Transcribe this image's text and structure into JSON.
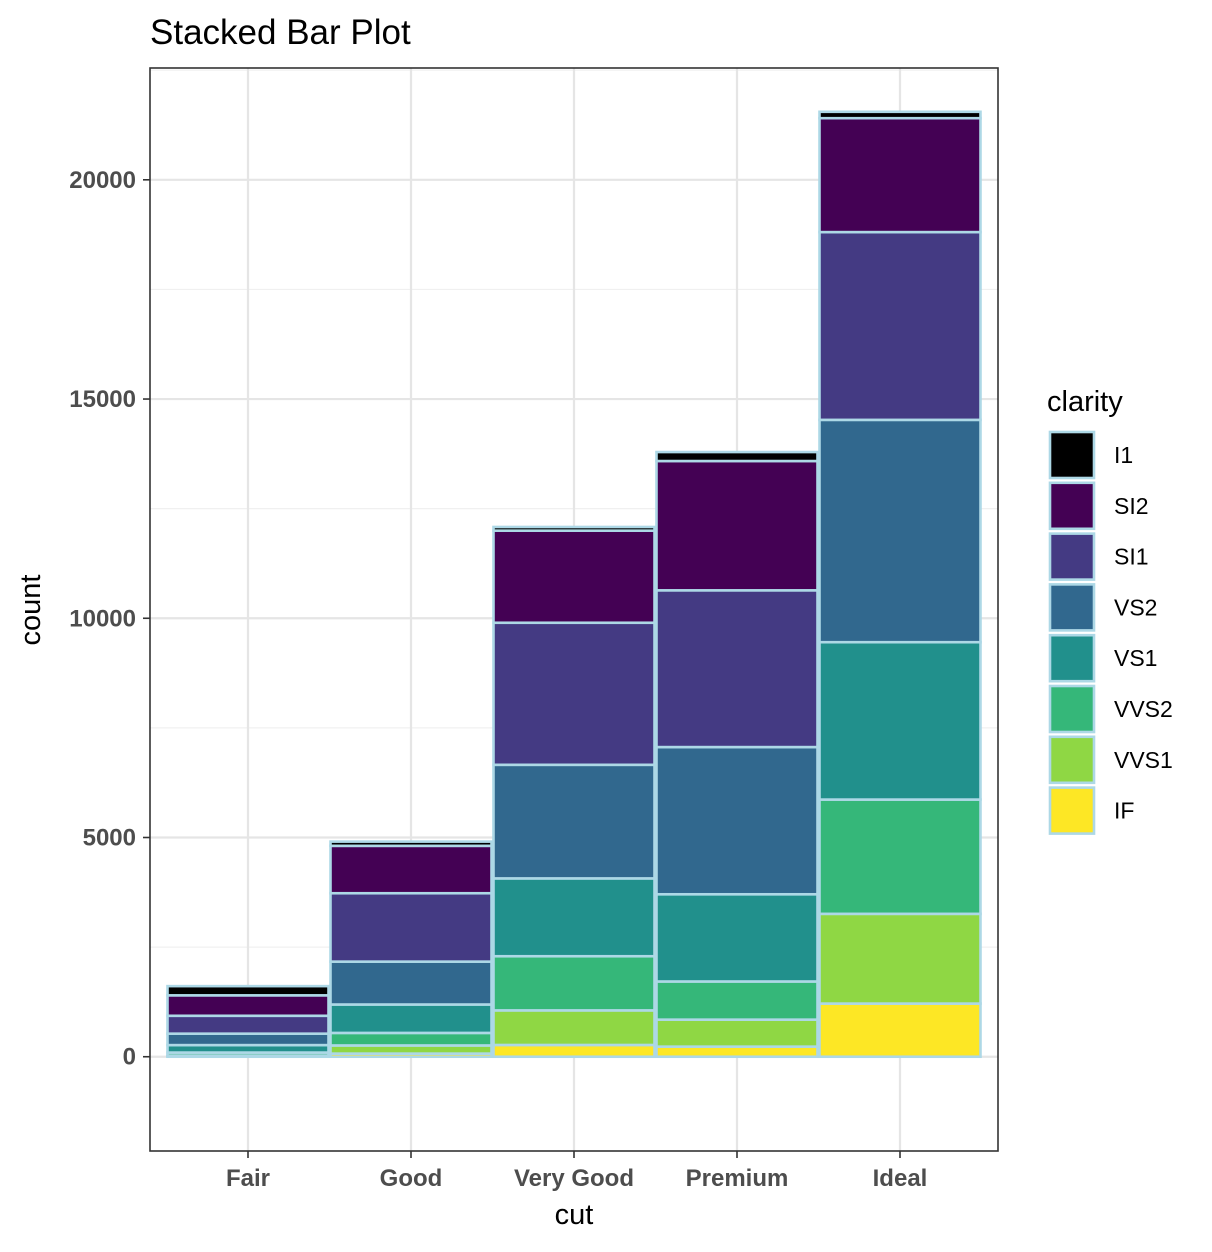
{
  "chart_data": {
    "type": "bar",
    "stacked": true,
    "title": "Stacked Bar Plot",
    "xlabel": "cut",
    "ylabel": "count",
    "categories": [
      "Fair",
      "Good",
      "Very Good",
      "Premium",
      "Ideal"
    ],
    "ylim": [
      -2150,
      22550
    ],
    "yticks": [
      0,
      5000,
      10000,
      15000,
      20000
    ],
    "grid": true,
    "legend": {
      "title": "clarity",
      "position": "right"
    },
    "bar_outline_color": "#ADD8E6",
    "series": [
      {
        "name": "IF",
        "color": "#FDE725",
        "values": [
          9,
          71,
          268,
          230,
          1212
        ]
      },
      {
        "name": "VVS1",
        "color": "#8FD744",
        "values": [
          17,
          186,
          789,
          616,
          2047
        ]
      },
      {
        "name": "VVS2",
        "color": "#35B779",
        "values": [
          69,
          286,
          1235,
          870,
          2606
        ]
      },
      {
        "name": "VS1",
        "color": "#21908C",
        "values": [
          170,
          648,
          1775,
          1989,
          3589
        ]
      },
      {
        "name": "VS2",
        "color": "#31688E",
        "values": [
          261,
          978,
          2591,
          3357,
          5071
        ]
      },
      {
        "name": "SI1",
        "color": "#443A83",
        "values": [
          408,
          1560,
          3240,
          3575,
          4282
        ]
      },
      {
        "name": "SI2",
        "color": "#440154",
        "values": [
          466,
          1081,
          2100,
          2949,
          2598
        ]
      },
      {
        "name": "I1",
        "color": "#000000",
        "values": [
          210,
          96,
          84,
          205,
          146
        ]
      }
    ],
    "legend_order": [
      "I1",
      "SI2",
      "SI1",
      "VS2",
      "VS1",
      "VVS2",
      "VVS1",
      "IF"
    ]
  }
}
